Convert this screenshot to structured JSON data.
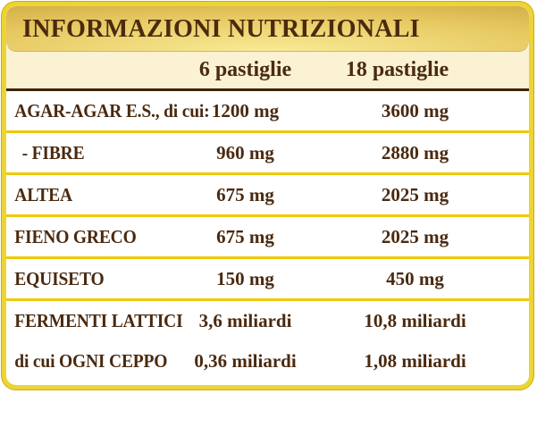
{
  "panel": {
    "title": "INFORMAZIONI NUTRIZIONALI",
    "columns": [
      "6 pastiglie",
      "18 pastiglie"
    ],
    "rows": [
      {
        "label": "AGAR-AGAR E.S., di cui:",
        "per6": "1200 mg",
        "per18": "3600 mg"
      },
      {
        "label": "- FIBRE",
        "per6": "960 mg",
        "per18": "2880 mg"
      },
      {
        "label": "ALTEA",
        "per6": "675 mg",
        "per18": "2025 mg"
      },
      {
        "label": "FIENO GRECO",
        "per6": "675 mg",
        "per18": "2025 mg"
      },
      {
        "label": "EQUISETO",
        "per6": "150 mg",
        "per18": "450 mg"
      },
      {
        "label": "FERMENTI LATTICI",
        "per6": "3,6 miliardi",
        "per18": "10,8 miliardi"
      },
      {
        "label": "di cui OGNI CEPPO",
        "per6": "0,36 miliardi",
        "per18": "1,08 miliardi"
      }
    ]
  },
  "colors": {
    "border_yellow": "#edd435",
    "line_yellow": "#efca08",
    "cream": "#fbf1d3",
    "text_brown": "#4a2a10",
    "dark_rule": "#3b2508",
    "gold_light": "#f8eb95",
    "gold_dark": "#c29b38",
    "background": "#ffffff"
  }
}
